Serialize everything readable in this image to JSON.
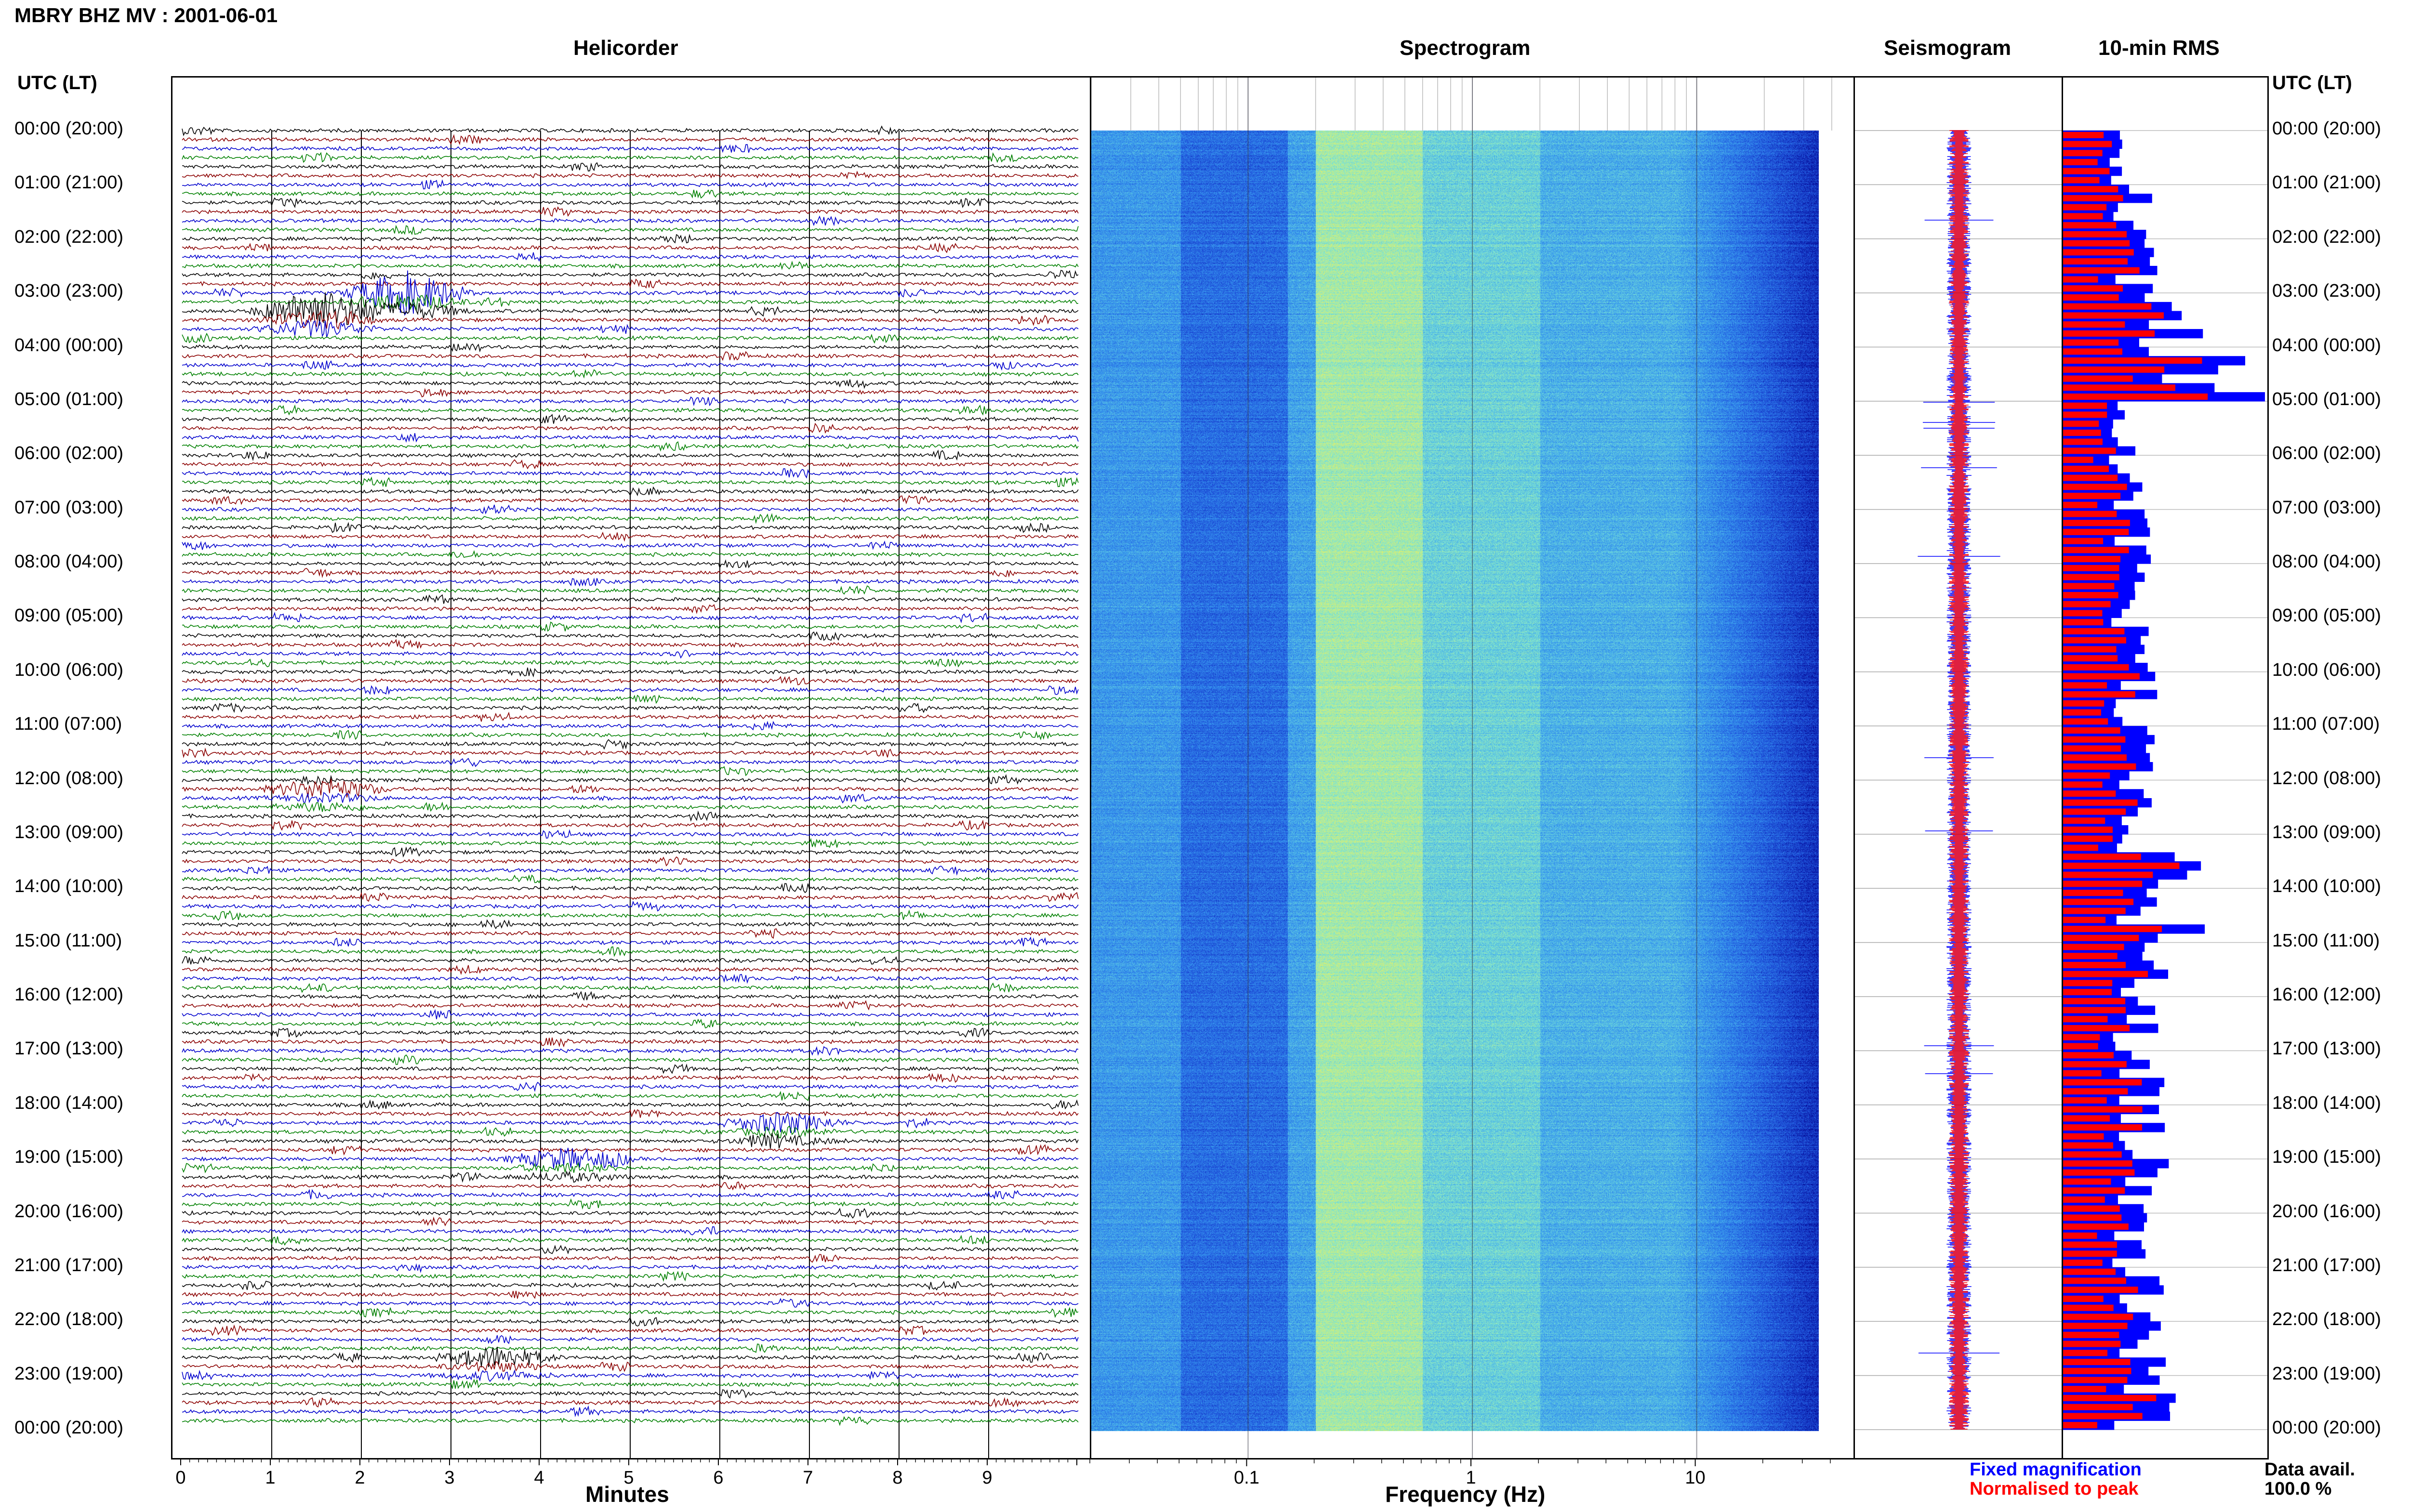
{
  "title": "MBRY BHZ MV : 2001-06-01",
  "panels": {
    "helicorder": "Helicorder",
    "spectrogram": "Spectrogram",
    "seismogram": "Seismogram",
    "rms": "10-min RMS"
  },
  "axis": {
    "left_header": "UTC (LT)",
    "right_header": "UTC (LT)",
    "helicorder_xlabel": "Minutes",
    "spectrogram_xlabel": "Frequency (Hz)"
  },
  "time_labels": [
    "00:00 (20:00)",
    "01:00 (21:00)",
    "02:00 (22:00)",
    "03:00 (23:00)",
    "04:00 (00:00)",
    "05:00 (01:00)",
    "06:00 (02:00)",
    "07:00 (03:00)",
    "08:00 (04:00)",
    "09:00 (05:00)",
    "10:00 (06:00)",
    "11:00 (07:00)",
    "12:00 (08:00)",
    "13:00 (09:00)",
    "14:00 (10:00)",
    "15:00 (11:00)",
    "16:00 (12:00)",
    "17:00 (13:00)",
    "18:00 (14:00)",
    "19:00 (15:00)",
    "20:00 (16:00)",
    "21:00 (17:00)",
    "22:00 (18:00)",
    "23:00 (19:00)",
    "00:00 (20:00)"
  ],
  "legend": {
    "fixed": "Fixed magnification",
    "normalised": "Normalised to peak",
    "fixed_color": "#0000ff",
    "normalised_color": "#ff0000"
  },
  "availability": {
    "label": "Data avail.",
    "value": "100.0 %"
  },
  "chart_data": [
    {
      "type": "line",
      "name": "helicorder",
      "title": "Helicorder",
      "xlabel": "Minutes",
      "xlim": [
        0,
        10
      ],
      "x_ticks": [
        "0",
        "1",
        "2",
        "3",
        "4",
        "5",
        "6",
        "7",
        "8",
        "9"
      ],
      "rows": 144,
      "row_minutes": 10,
      "trace_colors": [
        "#000000",
        "#8b0000",
        "#0000cd",
        "#008000"
      ],
      "events": [
        {
          "time": "03:20",
          "minute": 1.5,
          "amplitude": "large"
        },
        {
          "time": "03:00",
          "minute": 2.5,
          "amplitude": "large"
        },
        {
          "time": "12:10",
          "minute": 1.6,
          "amplitude": "medium"
        },
        {
          "time": "18:20",
          "minute": 6.7,
          "amplitude": "medium"
        },
        {
          "time": "19:00",
          "minute": 4.3,
          "amplitude": "medium"
        },
        {
          "time": "22:40",
          "minute": 3.5,
          "amplitude": "medium"
        }
      ]
    },
    {
      "type": "heatmap",
      "name": "spectrogram",
      "title": "Spectrogram",
      "xlabel": "Frequency (Hz)",
      "xscale": "log",
      "xlim": [
        0.02,
        50
      ],
      "x_ticks": [
        "0.1",
        "1",
        "10"
      ],
      "colormap": [
        "#00008b",
        "#1e50dc",
        "#3aa0f0",
        "#7ee6d2",
        "#e6f064"
      ],
      "rows": 144,
      "peak_band_hz": [
        0.2,
        0.6
      ]
    },
    {
      "type": "bar",
      "name": "10-min RMS",
      "title": "10-min RMS",
      "rows": 144,
      "series": [
        {
          "name": "Fixed magnification",
          "color": "#0000ff"
        },
        {
          "name": "Normalised to peak",
          "color": "#ff0000"
        }
      ],
      "hourly_peak_fixed": [
        0.3,
        0.45,
        0.5,
        0.85,
        1.0,
        0.4,
        0.4,
        0.45,
        0.4,
        0.5,
        0.5,
        0.45,
        0.45,
        0.75,
        0.7,
        0.55,
        0.55,
        0.5,
        0.55,
        0.55,
        0.5,
        0.5,
        0.75,
        0.6
      ]
    },
    {
      "type": "line",
      "name": "seismogram",
      "title": "Seismogram",
      "series": [
        {
          "name": "Fixed magnification",
          "color": "#0000ff"
        },
        {
          "name": "Normalised to peak",
          "color": "#ff0000"
        }
      ]
    }
  ]
}
